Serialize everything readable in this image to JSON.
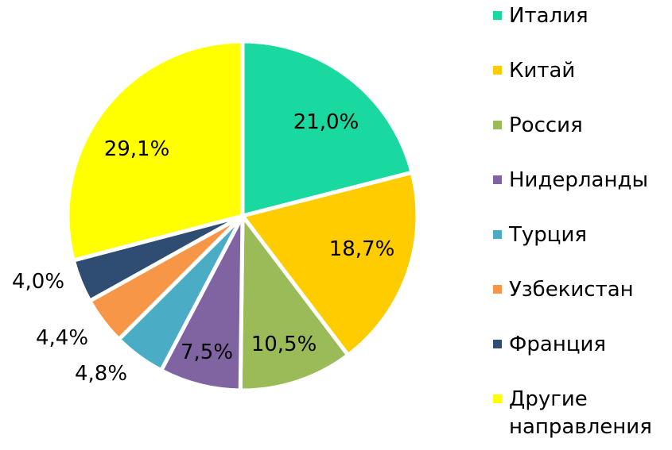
{
  "chart_data": {
    "type": "pie",
    "categories": [
      "Италия",
      "Китай",
      "Россия",
      "Нидерланды",
      "Турция",
      "Узбекистан",
      "Франция",
      "Другие\nнаправления"
    ],
    "values": [
      21.0,
      18.7,
      10.5,
      7.5,
      4.8,
      4.4,
      4.0,
      29.1
    ],
    "labels": [
      "21,0%",
      "18,7%",
      "10,5%",
      "7,5%",
      "4,8%",
      "4,4%",
      "4,0%",
      "29,1%"
    ],
    "colors": [
      "#19d9a0",
      "#ffcc00",
      "#9bbb59",
      "#8064a2",
      "#4bacc6",
      "#f79646",
      "#2f4c72",
      "#ffff00"
    ],
    "legend_position": "right",
    "start_angle_deg": 0,
    "direction": "clockwise"
  }
}
